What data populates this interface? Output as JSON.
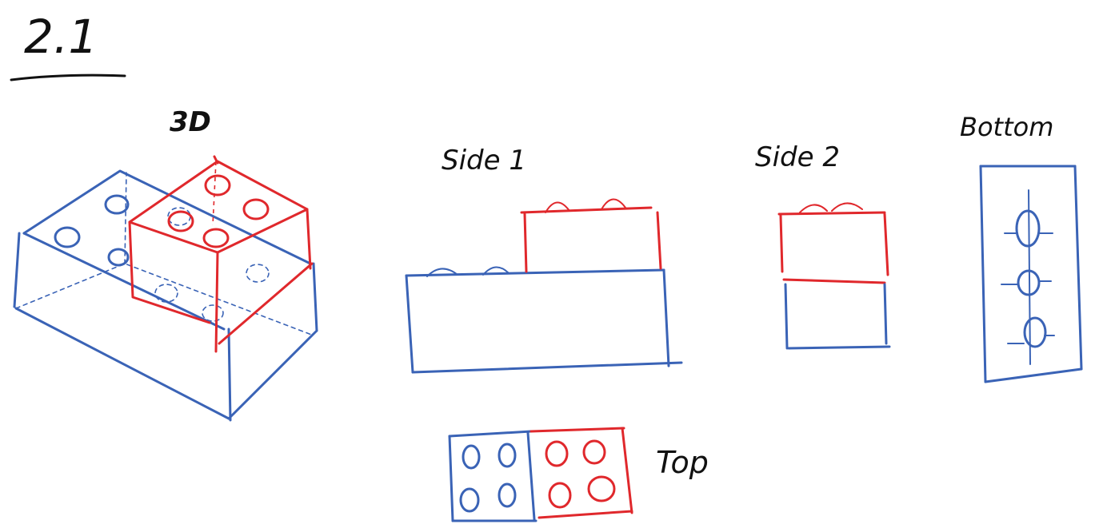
{
  "section_number": "2.1",
  "views": {
    "iso_label": "3D",
    "side1_label": "Side 1",
    "side2_label": "Side 2",
    "bottom_label": "Bottom",
    "top_label": "Top"
  },
  "colors": {
    "base_brick": "#3a63b6",
    "top_brick": "#e0282c",
    "ink": "#111111"
  }
}
